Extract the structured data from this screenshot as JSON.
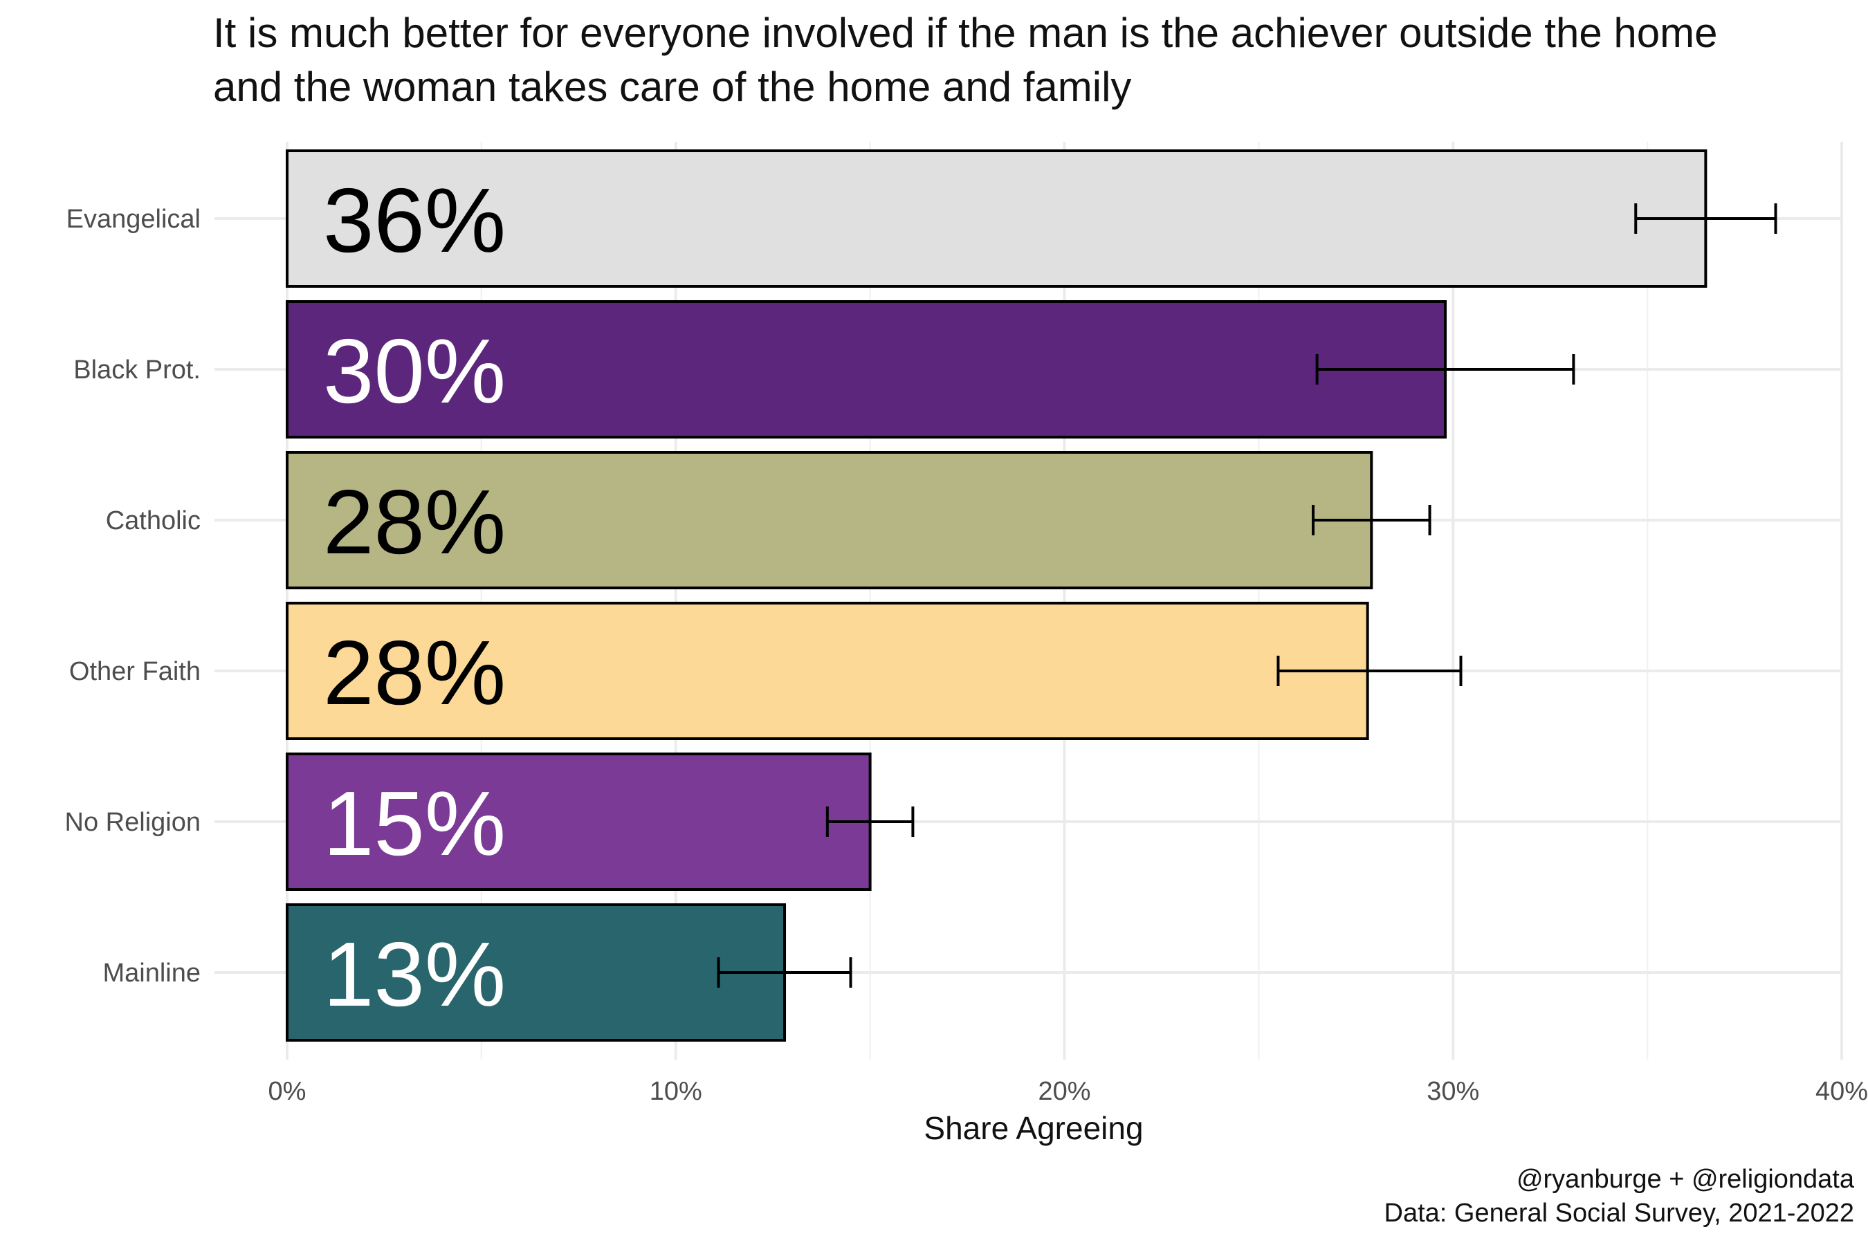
{
  "chart_data": {
    "type": "bar",
    "orientation": "horizontal",
    "title": "It is much better for everyone involved if the man is the achiever outside the home and the woman takes care of the home and family",
    "title_lines": [
      "It is much better for everyone involved if the man is the achiever outside the home",
      "and the woman takes care of the home and family"
    ],
    "xlabel": "Share Agreeing",
    "ylabel": "",
    "xlim": [
      0,
      0.4
    ],
    "x_ticks": [
      0,
      0.1,
      0.2,
      0.3,
      0.4
    ],
    "x_tick_labels": [
      "0%",
      "10%",
      "20%",
      "30%",
      "40%"
    ],
    "grid": true,
    "legend": "none",
    "categories": [
      "Evangelical",
      "Black Prot.",
      "Catholic",
      "Other Faith",
      "No Religion",
      "Mainline"
    ],
    "values": [
      0.365,
      0.298,
      0.279,
      0.278,
      0.15,
      0.128
    ],
    "data_labels": [
      "36%",
      "30%",
      "28%",
      "28%",
      "15%",
      "13%"
    ],
    "error_low": [
      0.347,
      0.265,
      0.264,
      0.255,
      0.139,
      0.111
    ],
    "error_high": [
      0.383,
      0.331,
      0.294,
      0.302,
      0.161,
      0.145
    ],
    "colors": [
      "#e0e0e0",
      "#5c267c",
      "#b6b684",
      "#fdd998",
      "#7b3a96",
      "#29656d"
    ],
    "label_colors": [
      "#000000",
      "#ffffff",
      "#000000",
      "#000000",
      "#ffffff",
      "#ffffff"
    ],
    "caption_lines": [
      "@ryanburge + @religiondata",
      "Data: General Social Survey, 2021-2022"
    ]
  }
}
